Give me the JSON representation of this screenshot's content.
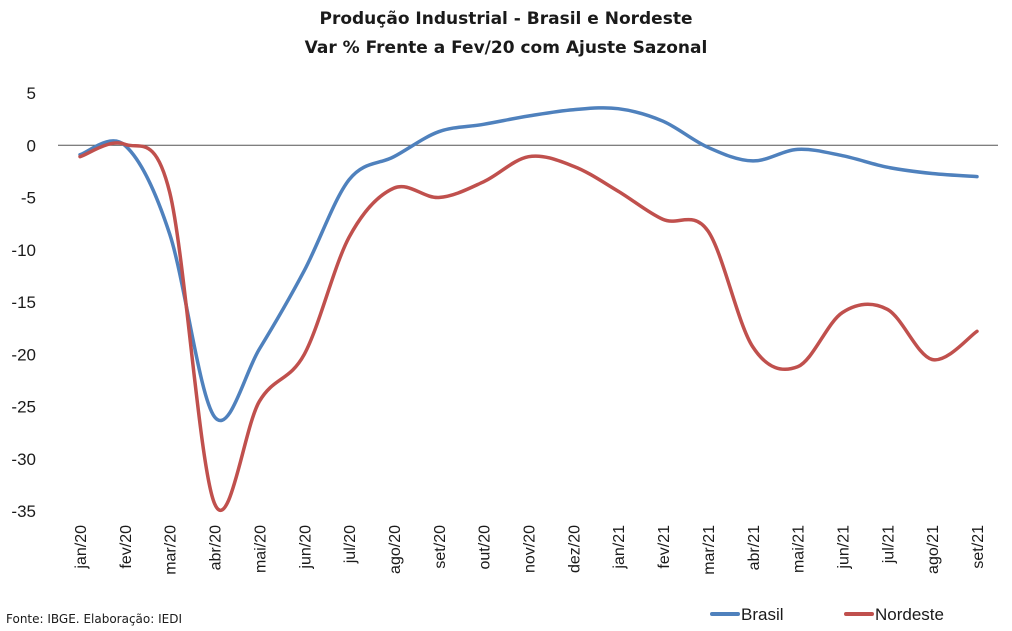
{
  "chart_data": {
    "type": "line",
    "title": "Produção Industrial - Brasil e Nordeste",
    "subtitle": "Var % Frente a Fev/20 com Ajuste Sazonal",
    "xlabel": "",
    "ylabel": "",
    "ylim": [
      -35,
      5
    ],
    "yticks": [
      5,
      0,
      -5,
      -10,
      -15,
      -20,
      -25,
      -30,
      -35
    ],
    "categories": [
      "jan/20",
      "fev/20",
      "mar/20",
      "abr/20",
      "mai/20",
      "jun/20",
      "jul/20",
      "ago/20",
      "set/20",
      "out/20",
      "nov/20",
      "dez/20",
      "jan/21",
      "fev/21",
      "mar/21",
      "abr/21",
      "mai/21",
      "jun/21",
      "jul/21",
      "ago/21",
      "set/21"
    ],
    "series": [
      {
        "name": "Brasil",
        "color": "#4f81bd",
        "values": [
          -0.9,
          0.0,
          -8.5,
          -26.0,
          -19.5,
          -12.0,
          -3.3,
          -1.1,
          1.3,
          2.0,
          2.8,
          3.4,
          3.5,
          2.3,
          -0.2,
          -1.5,
          -0.4,
          -1.0,
          -2.1,
          -2.7,
          -3.0
        ]
      },
      {
        "name": "Nordeste",
        "color": "#c0504d",
        "values": [
          -1.1,
          0.1,
          -4.5,
          -34.3,
          -24.5,
          -20.0,
          -8.8,
          -4.1,
          -5.0,
          -3.5,
          -1.1,
          -2.0,
          -4.4,
          -7.1,
          -8.2,
          -19.3,
          -21.2,
          -16.0,
          -15.7,
          -20.5,
          -17.8
        ]
      }
    ],
    "grid": false,
    "legend": "bottom-right",
    "source": "Fonte: IBGE. Elaboração: IEDI"
  }
}
